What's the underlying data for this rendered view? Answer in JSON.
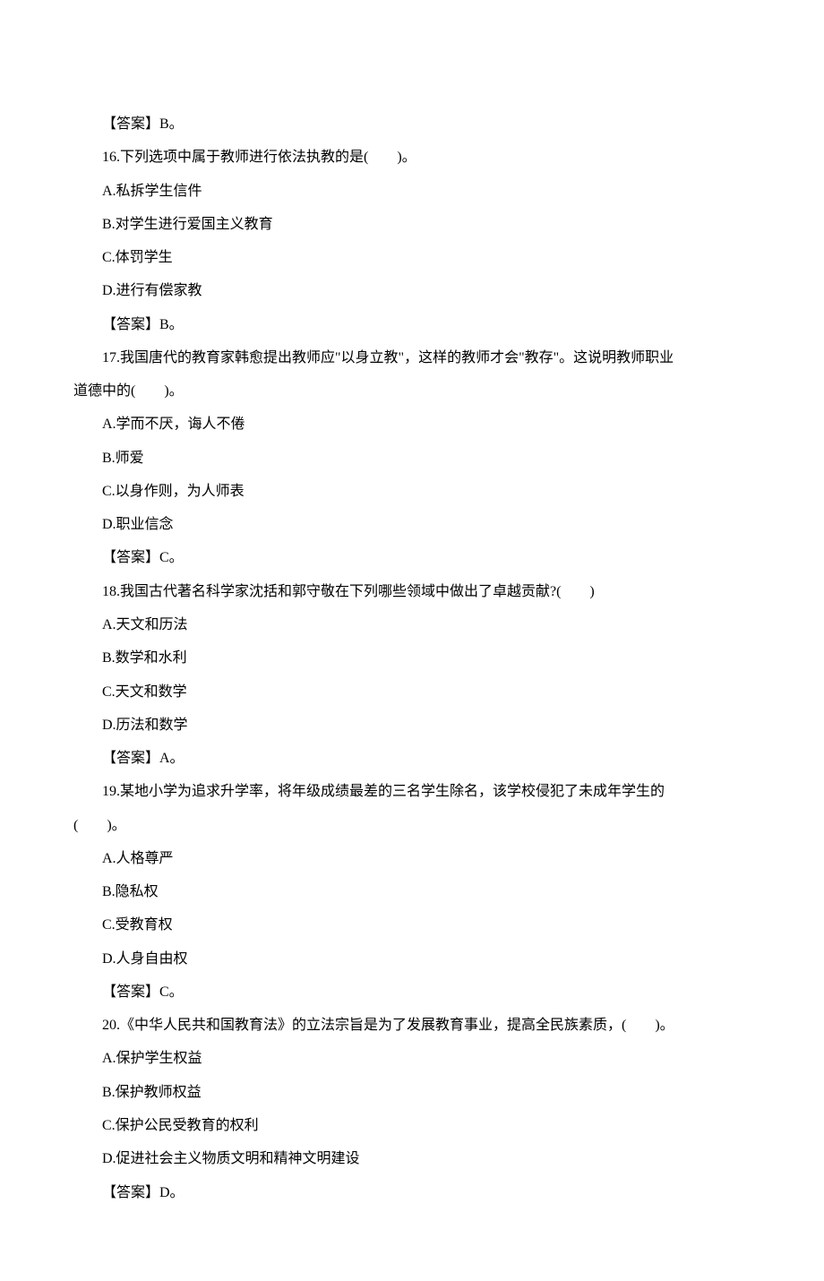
{
  "lines": [
    {
      "text": "【答案】B。",
      "indent": true
    },
    {
      "text": "16.下列选项中属于教师进行依法执教的是(　　)。",
      "indent": true
    },
    {
      "text": "A.私拆学生信件",
      "indent": true
    },
    {
      "text": "B.对学生进行爱国主义教育",
      "indent": true
    },
    {
      "text": "C.体罚学生",
      "indent": true
    },
    {
      "text": "D.进行有偿家教",
      "indent": true
    },
    {
      "text": "【答案】B。",
      "indent": true
    },
    {
      "text": "17.我国唐代的教育家韩愈提出教师应\"以身立教\"，这样的教师才会\"教存\"。这说明教师职业",
      "indent": true
    },
    {
      "text": "道德中的(　　)。",
      "indent": false
    },
    {
      "text": "A.学而不厌，诲人不倦",
      "indent": true
    },
    {
      "text": "B.师爱",
      "indent": true
    },
    {
      "text": "C.以身作则，为人师表",
      "indent": true
    },
    {
      "text": "D.职业信念",
      "indent": true
    },
    {
      "text": "【答案】C。",
      "indent": true
    },
    {
      "text": "18.我国古代著名科学家沈括和郭守敬在下列哪些领域中做出了卓越贡献?(　　)",
      "indent": true
    },
    {
      "text": "A.天文和历法",
      "indent": true
    },
    {
      "text": "B.数学和水利",
      "indent": true
    },
    {
      "text": "C.天文和数学",
      "indent": true
    },
    {
      "text": "D.历法和数学",
      "indent": true
    },
    {
      "text": "【答案】A。",
      "indent": true
    },
    {
      "text": "19.某地小学为追求升学率，将年级成绩最差的三名学生除名，该学校侵犯了未成年学生的",
      "indent": true
    },
    {
      "text": "(　　)。",
      "indent": false
    },
    {
      "text": "A.人格尊严",
      "indent": true
    },
    {
      "text": "B.隐私权",
      "indent": true
    },
    {
      "text": "C.受教育权",
      "indent": true
    },
    {
      "text": "D.人身自由权",
      "indent": true
    },
    {
      "text": "【答案】C。",
      "indent": true
    },
    {
      "text": "20.《中华人民共和国教育法》的立法宗旨是为了发展教育事业，提高全民族素质，(　　)。",
      "indent": true
    },
    {
      "text": "A.保护学生权益",
      "indent": true
    },
    {
      "text": "B.保护教师权益",
      "indent": true
    },
    {
      "text": "C.保护公民受教育的权利",
      "indent": true
    },
    {
      "text": "D.促进社会主义物质文明和精神文明建设",
      "indent": true
    },
    {
      "text": "【答案】D。",
      "indent": true
    }
  ]
}
